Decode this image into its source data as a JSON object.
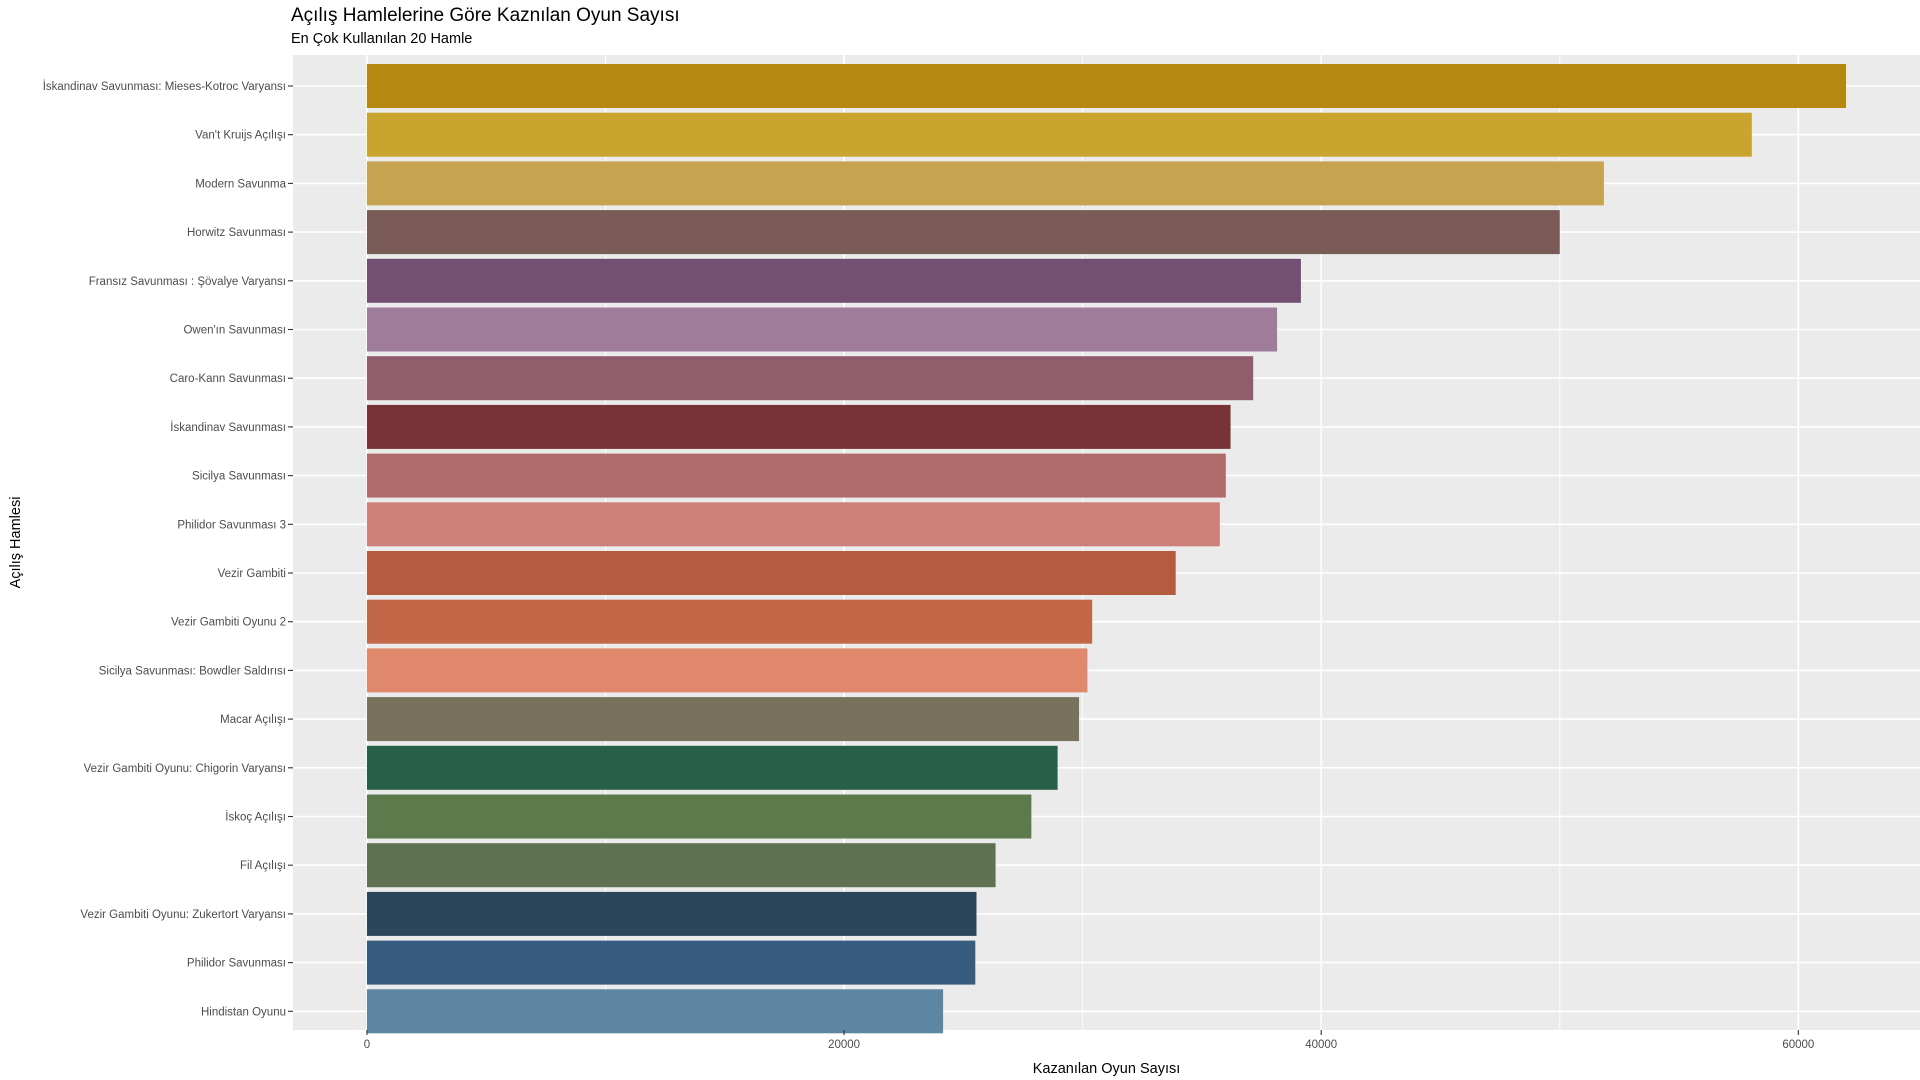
{
  "chart_data": {
    "type": "bar",
    "orientation": "horizontal",
    "title": "Açılış Hamlelerine Göre Kaznılan Oyun Sayısı",
    "subtitle": "En Çok Kullanılan 20 Hamle",
    "xlabel": "Kazanılan Oyun Sayısı",
    "ylabel": "Açılış Hamlesi",
    "xlim": [
      -3100,
      65100
    ],
    "x_ticks": [
      0,
      20000,
      40000,
      60000
    ],
    "grid": true,
    "legend": "none",
    "panel_background": "#ebebeb",
    "grid_color": "#ffffff",
    "categories": [
      "İskandinav Savunması: Mieses-Kotroc Varyansı",
      "Van't Kruijs Açılışı",
      "Modern Savunma",
      "Horwitz Savunması",
      "Fransız Savunması : Şövalye Varyansı",
      "Owen'ın Savunması",
      "Caro-Kann Savunması",
      "İskandinav Savunması",
      "Sicilya Savunması",
      "Philidor Savunması 3",
      "Vezir Gambiti",
      "Vezir Gambiti Oyunu 2",
      "Sicilya Savunması: Bowdler Saldırısı",
      "Macar Açılışı",
      "Vezir Gambiti Oyunu: Chigorin Varyansı",
      "İskoç Açılışı",
      "Fil Açılışı",
      "Vezir Gambiti Oyunu: Zukertort Varyansı",
      "Philidor Savunması",
      "Hindistan Oyunu"
    ],
    "values": [
      62000,
      58050,
      51850,
      50000,
      39150,
      38150,
      37150,
      36200,
      36000,
      35750,
      33900,
      30400,
      30200,
      29850,
      28950,
      27850,
      26350,
      25550,
      25500,
      24150
    ],
    "colors": [
      "#b58812",
      "#c9a530",
      "#c6a350",
      "#7b5b57",
      "#735073",
      "#9f7b9c",
      "#915c6c",
      "#773336",
      "#b06b6b",
      "#cd8077",
      "#b55b40",
      "#c26849",
      "#df886c",
      "#78725c",
      "#266048",
      "#5c7a4b",
      "#5e7252",
      "#2b455b",
      "#375c7f",
      "#5c86a1"
    ]
  }
}
